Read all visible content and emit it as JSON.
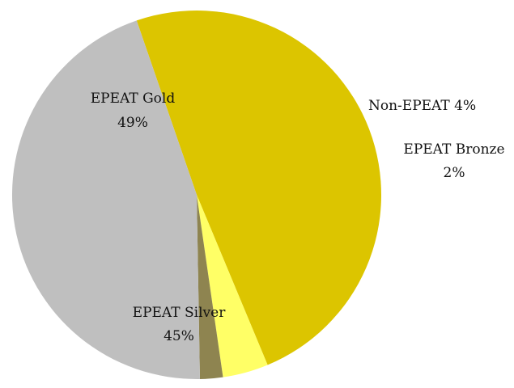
{
  "chart_data": {
    "type": "pie",
    "start_angle_deg": 341,
    "direction": "clockwise",
    "slices": [
      {
        "label": "EPEAT Gold",
        "value": 49,
        "value_label": "49%",
        "color": "#DCC500"
      },
      {
        "label": "Non-EPEAT",
        "value": 4,
        "value_label": "4%",
        "color": "#FFFF66"
      },
      {
        "label": "EPEAT Bronze",
        "value": 2,
        "value_label": "2%",
        "color": "#8E8450"
      },
      {
        "label": "EPEAT Silver",
        "value": 45,
        "value_label": "45%",
        "color": "#BFBFBF"
      }
    ]
  }
}
